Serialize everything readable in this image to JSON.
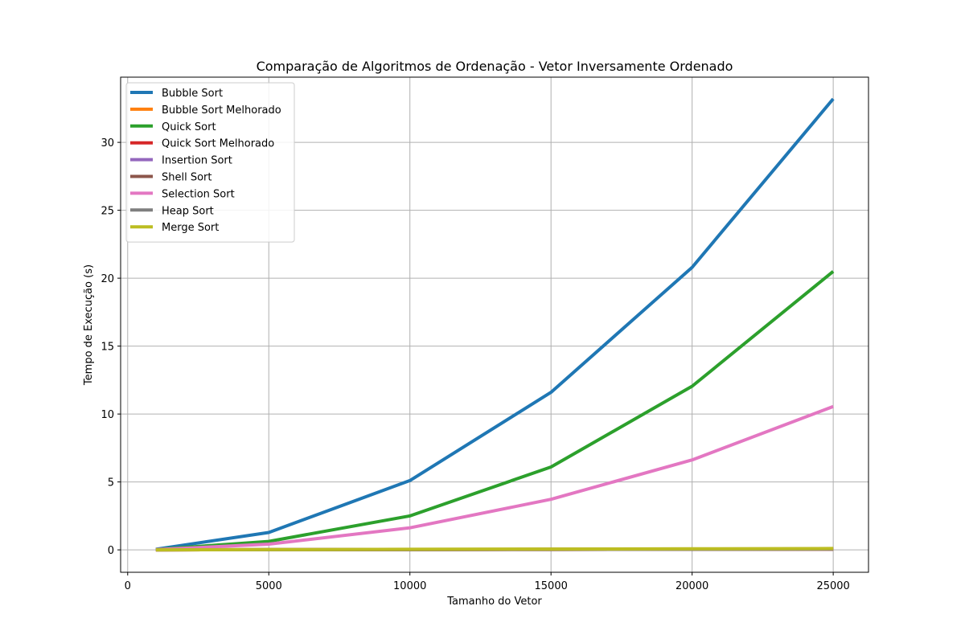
{
  "chart_data": {
    "type": "line",
    "title": "Comparação de Algoritmos de Ordenação - Vetor Inversamente Ordenado",
    "xlabel": "Tamanho do Vetor",
    "ylabel": "Tempo de Execução (s)",
    "x": [
      1000,
      5000,
      10000,
      15000,
      20000,
      25000
    ],
    "xlim": [
      -250,
      26250
    ],
    "ylim": [
      -1.65,
      34.8
    ],
    "xticks": [
      0,
      5000,
      10000,
      15000,
      20000,
      25000
    ],
    "yticks": [
      0,
      5,
      10,
      15,
      20,
      25,
      30
    ],
    "grid": true,
    "legend_position": "top-left",
    "series": [
      {
        "name": "Bubble Sort",
        "color": "#1f77b4",
        "values": [
          0.05,
          1.28,
          5.1,
          11.6,
          20.8,
          33.2
        ]
      },
      {
        "name": "Bubble Sort Melhorado",
        "color": "#ff7f0e",
        "values": [
          0.0,
          0.01,
          0.02,
          0.03,
          0.04,
          0.05
        ]
      },
      {
        "name": "Quick Sort",
        "color": "#2ca02c",
        "values": [
          0.03,
          0.62,
          2.5,
          6.1,
          12.05,
          20.5
        ]
      },
      {
        "name": "Quick Sort Melhorado",
        "color": "#d62728",
        "values": [
          0.0,
          0.01,
          0.02,
          0.04,
          0.05,
          0.06
        ]
      },
      {
        "name": "Insertion Sort",
        "color": "#9467bd",
        "values": [
          0.0,
          0.01,
          0.02,
          0.03,
          0.04,
          0.05
        ]
      },
      {
        "name": "Shell Sort",
        "color": "#8c564b",
        "values": [
          0.0,
          0.01,
          0.02,
          0.03,
          0.04,
          0.05
        ]
      },
      {
        "name": "Selection Sort",
        "color": "#e377c2",
        "values": [
          0.02,
          0.42,
          1.62,
          3.72,
          6.62,
          10.55
        ]
      },
      {
        "name": "Heap Sort",
        "color": "#7f7f7f",
        "values": [
          0.0,
          0.01,
          0.02,
          0.04,
          0.05,
          0.07
        ]
      },
      {
        "name": "Merge Sort",
        "color": "#bcbd22",
        "values": [
          0.0,
          0.02,
          0.04,
          0.06,
          0.08,
          0.1
        ]
      }
    ]
  }
}
